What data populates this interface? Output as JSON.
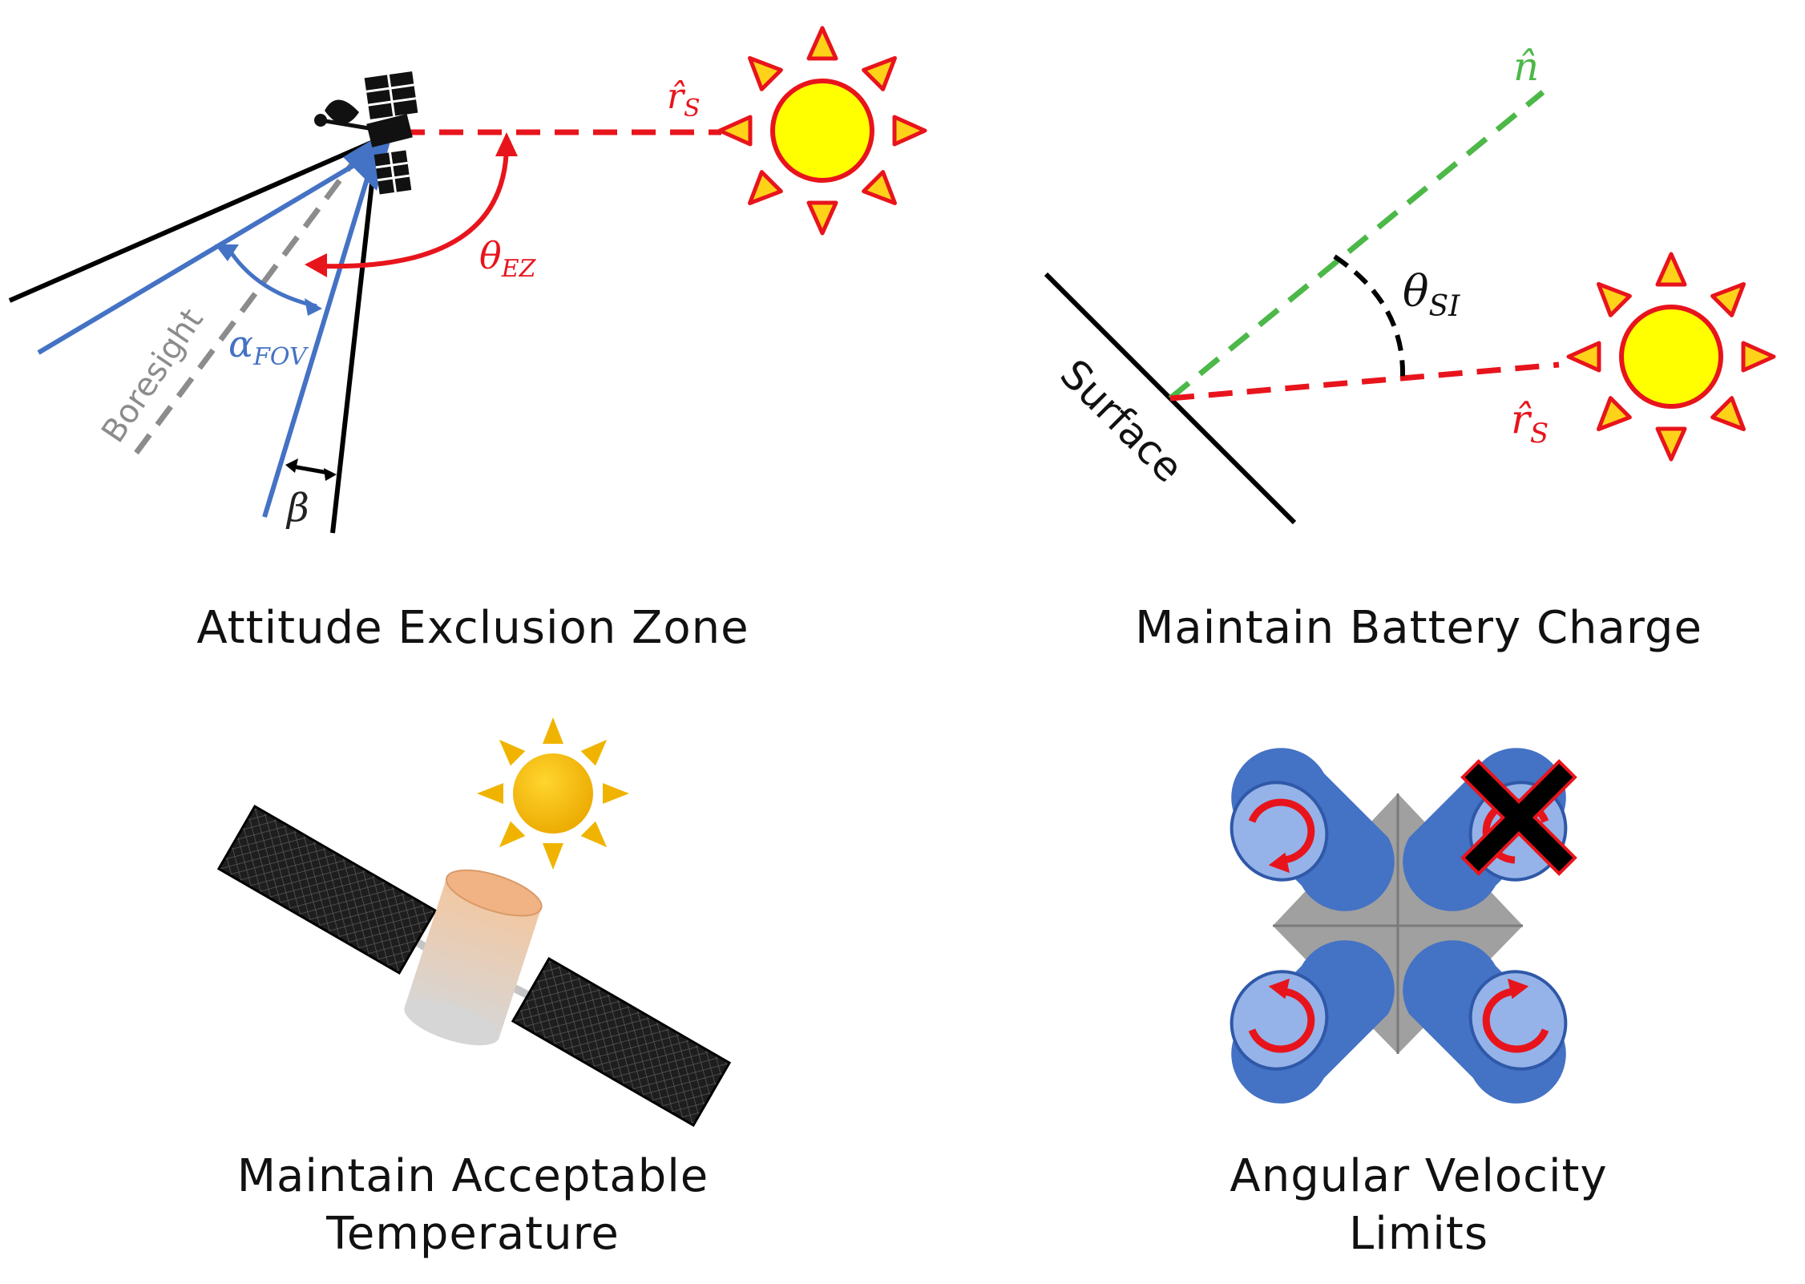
{
  "panels": {
    "exclusion": {
      "caption": "Attitude Exclusion Zone",
      "labels": {
        "theta": "θ",
        "theta_sub": "EZ",
        "rhat": "r̂",
        "rhat_sub": "S",
        "alpha": "α",
        "alpha_sub": "FOV",
        "beta": "β",
        "boresight": "Boresight"
      }
    },
    "battery": {
      "caption": "Maintain Battery Charge",
      "labels": {
        "nhat": "n̂",
        "theta": "θ",
        "theta_sub": "SI",
        "rhat": "r̂",
        "rhat_sub": "S",
        "surface": "Surface"
      }
    },
    "temperature": {
      "caption_line1": "Maintain Acceptable",
      "caption_line2": "Temperature"
    },
    "angular": {
      "caption_line1": "Angular Velocity",
      "caption_line2": "Limits"
    }
  },
  "colors": {
    "red": "#e8141c",
    "blue": "#4472c4",
    "green": "#4cb848",
    "gray": "#8c8c8c",
    "sun_fill": "#ffff00",
    "sun_ray": "#ffd21a",
    "sun2": "#f0b400"
  }
}
